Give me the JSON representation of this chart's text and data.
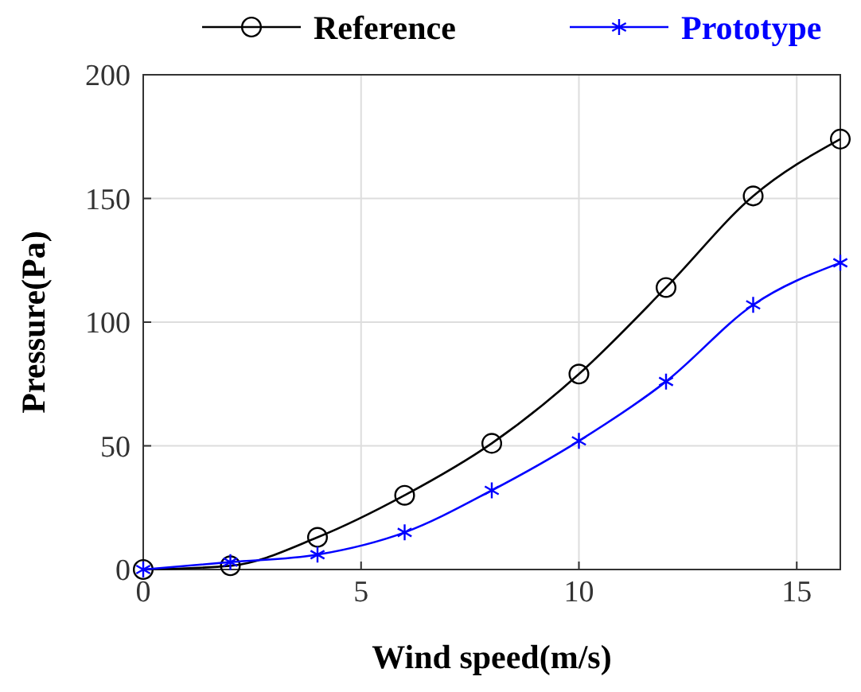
{
  "chart_data": {
    "type": "line",
    "xlabel": "Wind speed(m/s)",
    "ylabel": "Pressure(Pa)",
    "x": [
      0,
      2,
      4,
      6,
      8,
      10,
      12,
      14,
      16
    ],
    "series": [
      {
        "name": "Reference",
        "color": "#000000",
        "marker": "circle",
        "values": [
          0,
          1.5,
          13,
          30,
          51,
          79,
          114,
          151,
          174
        ]
      },
      {
        "name": "Prototype",
        "color": "#0000ff",
        "marker": "cross",
        "values": [
          0,
          3,
          6,
          15,
          32,
          52,
          76,
          107,
          124
        ]
      }
    ],
    "xlim": [
      0,
      16
    ],
    "xticks": [
      0,
      5,
      10,
      15
    ],
    "ylim": [
      0,
      200
    ],
    "yticks": [
      0,
      50,
      100,
      150,
      200
    ],
    "grid": true,
    "legend": "top",
    "line_style": "solid"
  }
}
